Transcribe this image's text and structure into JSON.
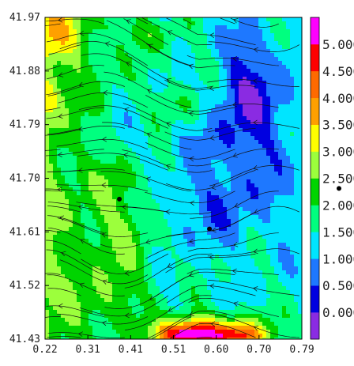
{
  "chart_data": {
    "type": "heatmap",
    "title": "",
    "xlabel": "",
    "ylabel": "",
    "xlim": [
      0.22,
      0.79
    ],
    "ylim": [
      41.43,
      41.97
    ],
    "x_ticks": [
      "0.22",
      "0.31",
      "0.41",
      "0.51",
      "0.60",
      "0.70",
      "0.79"
    ],
    "y_ticks": [
      "41.97",
      "41.88",
      "41.79",
      "41.70",
      "41.61",
      "41.52",
      "41.43"
    ],
    "colorbar": {
      "ticks": [
        "0.000",
        "0.500",
        "1.000",
        "1.500",
        "2.000",
        "2.500",
        "3.000",
        "3.500",
        "4.000",
        "4.500",
        "5.000"
      ],
      "levels": [
        {
          "from": -0.5,
          "to": 0.0,
          "color": "#8a2be2"
        },
        {
          "from": 0.0,
          "to": 0.5,
          "color": "#0000e0"
        },
        {
          "from": 0.5,
          "to": 1.0,
          "color": "#1e78ff"
        },
        {
          "from": 1.0,
          "to": 1.5,
          "color": "#00e5ff"
        },
        {
          "from": 1.5,
          "to": 2.0,
          "color": "#00ff7f"
        },
        {
          "from": 2.0,
          "to": 2.5,
          "color": "#00d400"
        },
        {
          "from": 2.5,
          "to": 3.0,
          "color": "#9cff3c"
        },
        {
          "from": 3.0,
          "to": 3.5,
          "color": "#ffff00"
        },
        {
          "from": 3.5,
          "to": 4.0,
          "color": "#ffa000"
        },
        {
          "from": 4.0,
          "to": 4.5,
          "color": "#ff6a00"
        },
        {
          "from": 4.5,
          "to": 5.0,
          "color": "#ff0000"
        },
        {
          "from": 5.0,
          "to": 5.5,
          "color": "#ff00ff"
        }
      ]
    },
    "markers": [
      {
        "x": 0.385,
        "y": 41.665
      },
      {
        "x": 0.585,
        "y": 41.615
      }
    ],
    "legend_marker": {
      "y": 41.675
    },
    "streamlines": "dense black streamlines with arrowheads, overall flow westward / north-westward",
    "grid": false
  }
}
